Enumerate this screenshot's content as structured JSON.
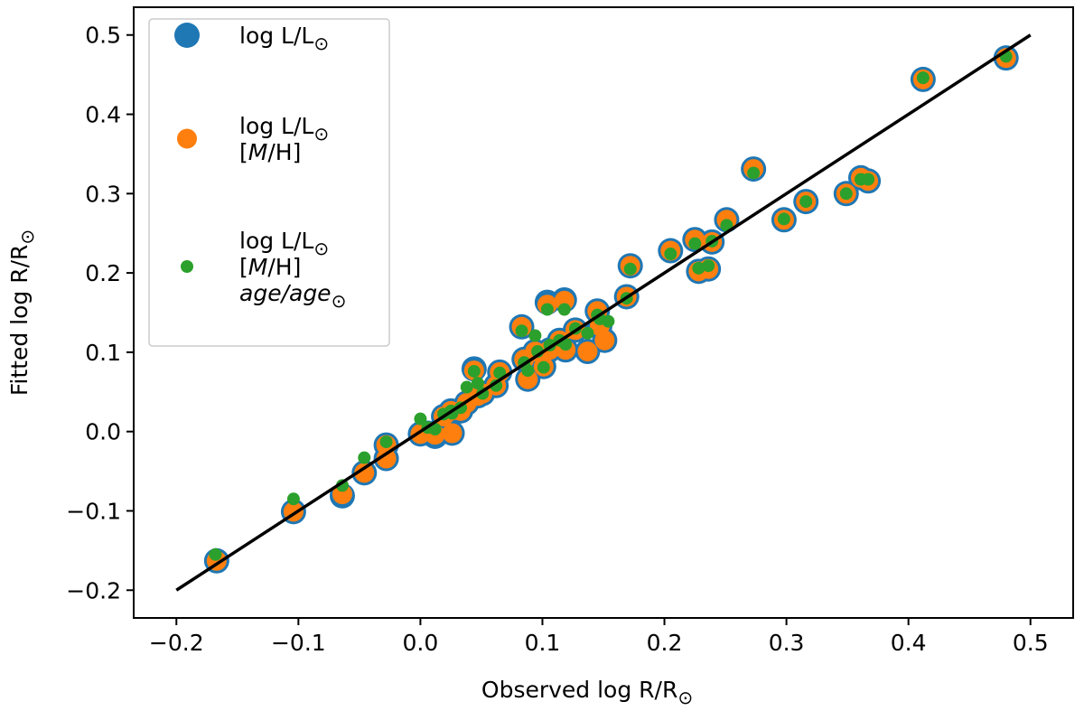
{
  "chart_data": {
    "type": "scatter",
    "xlabel": "Observed log R/R",
    "ylabel": "Fitted log R/R",
    "xlabel_sun": "⊙",
    "ylabel_sun": "⊙",
    "xlim": [
      -0.235,
      0.535
    ],
    "ylim": [
      -0.235,
      0.535
    ],
    "xticks": [
      -0.2,
      -0.1,
      0.0,
      0.1,
      0.2,
      0.3,
      0.4,
      0.5
    ],
    "yticks": [
      -0.2,
      -0.1,
      0.0,
      0.1,
      0.2,
      0.3,
      0.4,
      0.5
    ],
    "xtick_labels": [
      "−0.2",
      "−0.1",
      "0.0",
      "0.1",
      "0.2",
      "0.3",
      "0.4",
      "0.5"
    ],
    "ytick_labels": [
      "−0.2",
      "−0.1",
      "0.0",
      "0.1",
      "0.2",
      "0.3",
      "0.4",
      "0.5"
    ],
    "one_to_one_line": {
      "x": [
        -0.2,
        0.5
      ],
      "y": [
        -0.2,
        0.5
      ],
      "color": "#000000"
    },
    "legend": {
      "placement": "top-left",
      "entries": [
        {
          "series": "blue",
          "lines": [
            {
              "text": "log L/L",
              "sun": "⊙",
              "style": "normal"
            }
          ]
        },
        {
          "series": "orange",
          "lines": [
            {
              "text": "log L/L",
              "sun": "⊙",
              "style": "normal"
            },
            {
              "text": "[M/H]",
              "style": "mh"
            }
          ]
        },
        {
          "series": "green",
          "lines": [
            {
              "text": "log L/L",
              "sun": "⊙",
              "style": "normal"
            },
            {
              "text": "[M/H]",
              "style": "mh"
            },
            {
              "text": "age/age",
              "sun": "⊙",
              "style": "italic"
            }
          ]
        }
      ]
    },
    "series": [
      {
        "name": "blue",
        "label": "log L/L⊙",
        "color": "#1f77b4",
        "size": "large",
        "points": [
          [
            -0.167,
            -0.163
          ],
          [
            -0.104,
            -0.101
          ],
          [
            -0.064,
            -0.081
          ],
          [
            -0.046,
            -0.052
          ],
          [
            -0.028,
            -0.034
          ],
          [
            -0.028,
            -0.017
          ],
          [
            0.0,
            -0.003
          ],
          [
            0.006,
            -0.002
          ],
          [
            0.012,
            -0.006
          ],
          [
            0.019,
            0.019
          ],
          [
            0.025,
            0.026
          ],
          [
            0.026,
            -0.002
          ],
          [
            0.033,
            0.026
          ],
          [
            0.038,
            0.036
          ],
          [
            0.044,
            0.079
          ],
          [
            0.047,
            0.045
          ],
          [
            0.051,
            0.048
          ],
          [
            0.062,
            0.058
          ],
          [
            0.065,
            0.075
          ],
          [
            0.083,
            0.132
          ],
          [
            0.085,
            0.091
          ],
          [
            0.088,
            0.066
          ],
          [
            0.094,
            0.101
          ],
          [
            0.101,
            0.082
          ],
          [
            0.104,
            0.163
          ],
          [
            0.106,
            0.103
          ],
          [
            0.114,
            0.115
          ],
          [
            0.118,
            0.166
          ],
          [
            0.119,
            0.103
          ],
          [
            0.127,
            0.128
          ],
          [
            0.137,
            0.101
          ],
          [
            0.145,
            0.152
          ],
          [
            0.147,
            0.133
          ],
          [
            0.151,
            0.115
          ],
          [
            0.169,
            0.17
          ],
          [
            0.172,
            0.209
          ],
          [
            0.205,
            0.228
          ],
          [
            0.225,
            0.242
          ],
          [
            0.228,
            0.202
          ],
          [
            0.236,
            0.205
          ],
          [
            0.239,
            0.239
          ],
          [
            0.251,
            0.267
          ],
          [
            0.273,
            0.331
          ],
          [
            0.298,
            0.267
          ],
          [
            0.316,
            0.29
          ],
          [
            0.349,
            0.3
          ],
          [
            0.361,
            0.32
          ],
          [
            0.367,
            0.316
          ],
          [
            0.412,
            0.444
          ],
          [
            0.48,
            0.471
          ]
        ]
      },
      {
        "name": "orange",
        "label": "log L/L⊙ [M/H]",
        "color": "#ff7f0e",
        "size": "medium",
        "points": [
          [
            -0.167,
            -0.163
          ],
          [
            -0.104,
            -0.101
          ],
          [
            -0.064,
            -0.079
          ],
          [
            -0.046,
            -0.052
          ],
          [
            -0.028,
            -0.034
          ],
          [
            -0.028,
            -0.017
          ],
          [
            0.0,
            -0.003
          ],
          [
            0.006,
            0.0
          ],
          [
            0.012,
            -0.004
          ],
          [
            0.019,
            0.019
          ],
          [
            0.025,
            0.026
          ],
          [
            0.026,
            -0.002
          ],
          [
            0.033,
            0.026
          ],
          [
            0.038,
            0.036
          ],
          [
            0.044,
            0.077
          ],
          [
            0.047,
            0.045
          ],
          [
            0.051,
            0.048
          ],
          [
            0.062,
            0.058
          ],
          [
            0.065,
            0.075
          ],
          [
            0.083,
            0.132
          ],
          [
            0.085,
            0.091
          ],
          [
            0.088,
            0.066
          ],
          [
            0.094,
            0.101
          ],
          [
            0.101,
            0.082
          ],
          [
            0.104,
            0.16
          ],
          [
            0.106,
            0.103
          ],
          [
            0.114,
            0.115
          ],
          [
            0.118,
            0.165
          ],
          [
            0.119,
            0.103
          ],
          [
            0.127,
            0.128
          ],
          [
            0.137,
            0.101
          ],
          [
            0.145,
            0.152
          ],
          [
            0.147,
            0.133
          ],
          [
            0.151,
            0.115
          ],
          [
            0.169,
            0.17
          ],
          [
            0.172,
            0.209
          ],
          [
            0.205,
            0.228
          ],
          [
            0.225,
            0.242
          ],
          [
            0.228,
            0.202
          ],
          [
            0.236,
            0.205
          ],
          [
            0.239,
            0.239
          ],
          [
            0.251,
            0.267
          ],
          [
            0.273,
            0.331
          ],
          [
            0.298,
            0.267
          ],
          [
            0.316,
            0.29
          ],
          [
            0.349,
            0.3
          ],
          [
            0.361,
            0.32
          ],
          [
            0.367,
            0.316
          ],
          [
            0.412,
            0.444
          ],
          [
            0.48,
            0.471
          ]
        ]
      },
      {
        "name": "green",
        "label": "log L/L⊙ [M/H] age/age⊙",
        "color": "#2ca02c",
        "size": "small",
        "points": [
          [
            -0.168,
            -0.155
          ],
          [
            -0.104,
            -0.085
          ],
          [
            -0.064,
            -0.068
          ],
          [
            -0.046,
            -0.033
          ],
          [
            -0.028,
            -0.013
          ],
          [
            0.0,
            0.016
          ],
          [
            0.006,
            0.005
          ],
          [
            0.012,
            0.003
          ],
          [
            0.019,
            0.022
          ],
          [
            0.025,
            0.026
          ],
          [
            0.026,
            0.023
          ],
          [
            0.033,
            0.03
          ],
          [
            0.038,
            0.056
          ],
          [
            0.044,
            0.076
          ],
          [
            0.047,
            0.061
          ],
          [
            0.051,
            0.048
          ],
          [
            0.062,
            0.058
          ],
          [
            0.065,
            0.074
          ],
          [
            0.083,
            0.127
          ],
          [
            0.085,
            0.087
          ],
          [
            0.088,
            0.077
          ],
          [
            0.094,
            0.121
          ],
          [
            0.096,
            0.101
          ],
          [
            0.101,
            0.081
          ],
          [
            0.104,
            0.154
          ],
          [
            0.106,
            0.109
          ],
          [
            0.114,
            0.115
          ],
          [
            0.118,
            0.154
          ],
          [
            0.119,
            0.11
          ],
          [
            0.127,
            0.13
          ],
          [
            0.137,
            0.124
          ],
          [
            0.145,
            0.147
          ],
          [
            0.147,
            0.142
          ],
          [
            0.154,
            0.139
          ],
          [
            0.169,
            0.168
          ],
          [
            0.172,
            0.205
          ],
          [
            0.205,
            0.224
          ],
          [
            0.225,
            0.237
          ],
          [
            0.228,
            0.206
          ],
          [
            0.236,
            0.209
          ],
          [
            0.239,
            0.24
          ],
          [
            0.251,
            0.26
          ],
          [
            0.273,
            0.326
          ],
          [
            0.298,
            0.268
          ],
          [
            0.316,
            0.29
          ],
          [
            0.349,
            0.3
          ],
          [
            0.361,
            0.318
          ],
          [
            0.367,
            0.318
          ],
          [
            0.412,
            0.446
          ],
          [
            0.48,
            0.473
          ]
        ]
      }
    ]
  }
}
